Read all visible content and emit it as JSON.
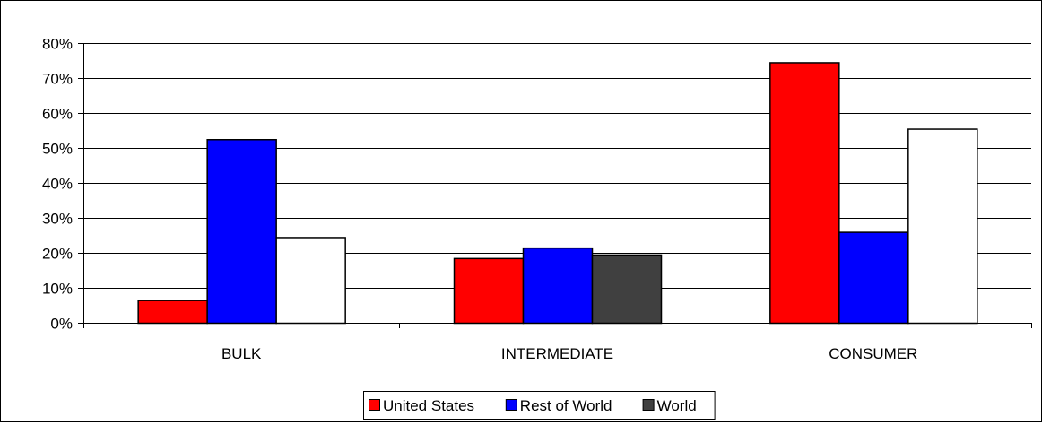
{
  "chart_data": {
    "type": "bar",
    "categories": [
      "BULK",
      "INTERMEDIATE",
      "CONSUMER"
    ],
    "series": [
      {
        "name": "United States",
        "values": [
          6.5,
          18.5,
          74.5
        ],
        "colors": [
          "#ff0000",
          "#ff0000",
          "#ff0000"
        ]
      },
      {
        "name": "Rest of World",
        "values": [
          52.5,
          21.5,
          26.0
        ],
        "colors": [
          "#0000ff",
          "#0000ff",
          "#0000ff"
        ]
      },
      {
        "name": "World",
        "values": [
          24.5,
          19.5,
          55.5
        ],
        "colors": [
          "#ffffff",
          "#404040",
          "#ffffff"
        ]
      }
    ],
    "legend_colors": [
      "#ff0000",
      "#0000ff",
      "#404040"
    ],
    "ylim": [
      0,
      80
    ],
    "yticks": [
      0,
      10,
      20,
      30,
      40,
      50,
      60,
      70,
      80
    ],
    "ytick_labels": [
      "0%",
      "10%",
      "20%",
      "30%",
      "40%",
      "50%",
      "60%",
      "70%",
      "80%"
    ],
    "grid": true,
    "legend_position": "bottom-center",
    "title": "",
    "xlabel": "",
    "ylabel": ""
  }
}
